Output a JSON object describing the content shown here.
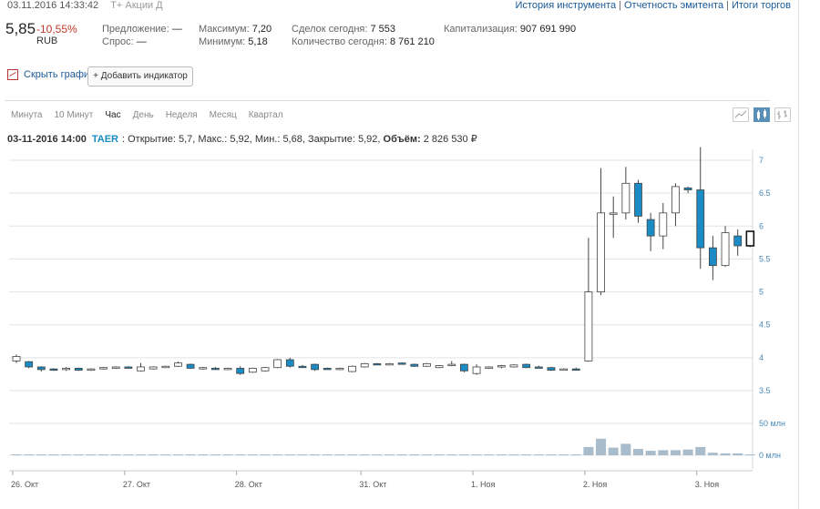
{
  "header": {
    "datetime": "03.11.2016 14:33:42",
    "market": "Т+ Акции Д",
    "links": [
      "История инструмента",
      "Отчетность эмитента",
      "Итоги торгов"
    ],
    "price": "5,85",
    "change": "-10,55%",
    "currency": "RUB",
    "offer_label": "Предложение:",
    "offer_value": "—",
    "bid_label": "Спрос:",
    "bid_value": "—",
    "max_label": "Максимум:",
    "max_value": "7,20",
    "min_label": "Минимум:",
    "min_value": "5,18",
    "deals_label": "Сделок сегодня:",
    "deals_value": "7 553",
    "qty_label": "Количество сегодня:",
    "qty_value": "8 761 210",
    "cap_label": "Капитализация:",
    "cap_value": "907 691 990"
  },
  "controls": {
    "hide_chart": "Скрыть график",
    "add_indicator": "+ Добавить индикатор",
    "tabs": [
      "Минута",
      "10 Минут",
      "Час",
      "День",
      "Неделя",
      "Месяц",
      "Квартал"
    ],
    "active_tab": "Час"
  },
  "info": {
    "date": "03-11-2016 14:00",
    "ticker": "TAER",
    "rest": ": Открытие: 5,7, Макс.: 5,92, Мин.: 5,68, Закрытие: 5,92,",
    "volume_label": "Объём:",
    "volume_value": "2 826 530 ₽"
  },
  "colors": {
    "up": "#ffffff",
    "down": "#1a8bc4",
    "wick": "#444444",
    "volume": "#a8bccb",
    "grid": "#e3e3e3",
    "axis_text": "#4a8ab8"
  },
  "chart_data": {
    "type": "candlestick",
    "y_ticks": [
      3.5,
      4,
      4.5,
      5,
      5.5,
      6,
      6.5,
      7
    ],
    "y_tick_labels": [
      "3.5",
      "4",
      "4.5",
      "5",
      "5.5",
      "6",
      "6.5",
      "7"
    ],
    "ylim": [
      3.3,
      7.3
    ],
    "volume_ticks": [
      "50 млн",
      "0 млн"
    ],
    "volume_max": 70,
    "x_labels": [
      "26. Окт",
      "27. Окт",
      "28. Окт",
      "31. Окт",
      "1. Ноя",
      "2. Ноя",
      "3. Ноя"
    ],
    "x_label_index": [
      0,
      9,
      18,
      28,
      37,
      46,
      55
    ],
    "candles": [
      {
        "o": 3.95,
        "h": 4.05,
        "l": 3.92,
        "c": 4.02,
        "v": 0.5
      },
      {
        "o": 3.94,
        "h": 3.95,
        "l": 3.84,
        "c": 3.86,
        "v": 0.5
      },
      {
        "o": 3.86,
        "h": 3.87,
        "l": 3.79,
        "c": 3.82,
        "v": 0.5
      },
      {
        "o": 3.83,
        "h": 3.84,
        "l": 3.8,
        "c": 3.82,
        "v": 0.3
      },
      {
        "o": 3.82,
        "h": 3.86,
        "l": 3.8,
        "c": 3.84,
        "v": 0.3
      },
      {
        "o": 3.84,
        "h": 3.85,
        "l": 3.8,
        "c": 3.81,
        "v": 0.3
      },
      {
        "o": 3.82,
        "h": 3.84,
        "l": 3.8,
        "c": 3.83,
        "v": 0.3
      },
      {
        "o": 3.84,
        "h": 3.86,
        "l": 3.82,
        "c": 3.85,
        "v": 0.3
      },
      {
        "o": 3.85,
        "h": 3.87,
        "l": 3.83,
        "c": 3.86,
        "v": 0.3
      },
      {
        "o": 3.86,
        "h": 3.87,
        "l": 3.84,
        "c": 3.85,
        "v": 0.3
      },
      {
        "o": 3.8,
        "h": 3.92,
        "l": 3.79,
        "c": 3.86,
        "v": 0.3
      },
      {
        "o": 3.83,
        "h": 3.87,
        "l": 3.82,
        "c": 3.86,
        "v": 0.3
      },
      {
        "o": 3.86,
        "h": 3.88,
        "l": 3.85,
        "c": 3.87,
        "v": 0.3
      },
      {
        "o": 3.87,
        "h": 3.94,
        "l": 3.86,
        "c": 3.92,
        "v": 0.5
      },
      {
        "o": 3.9,
        "h": 3.91,
        "l": 3.83,
        "c": 3.84,
        "v": 0.5
      },
      {
        "o": 3.84,
        "h": 3.86,
        "l": 3.82,
        "c": 3.85,
        "v": 0.3
      },
      {
        "o": 3.84,
        "h": 3.86,
        "l": 3.82,
        "c": 3.83,
        "v": 0.3
      },
      {
        "o": 3.83,
        "h": 3.85,
        "l": 3.82,
        "c": 3.84,
        "v": 0.3
      },
      {
        "o": 3.84,
        "h": 3.87,
        "l": 3.74,
        "c": 3.76,
        "v": 0.3
      },
      {
        "o": 3.78,
        "h": 3.85,
        "l": 3.77,
        "c": 3.84,
        "v": 0.3
      },
      {
        "o": 3.8,
        "h": 3.86,
        "l": 3.79,
        "c": 3.85,
        "v": 0.3
      },
      {
        "o": 3.85,
        "h": 3.98,
        "l": 3.84,
        "c": 3.97,
        "v": 0.5
      },
      {
        "o": 3.97,
        "h": 4.0,
        "l": 3.85,
        "c": 3.87,
        "v": 0.5
      },
      {
        "o": 3.87,
        "h": 3.89,
        "l": 3.85,
        "c": 3.86,
        "v": 0.3
      },
      {
        "o": 3.9,
        "h": 3.91,
        "l": 3.8,
        "c": 3.82,
        "v": 0.3
      },
      {
        "o": 3.84,
        "h": 3.85,
        "l": 3.82,
        "c": 3.83,
        "v": 0.3
      },
      {
        "o": 3.83,
        "h": 3.85,
        "l": 3.81,
        "c": 3.84,
        "v": 0.3
      },
      {
        "o": 3.79,
        "h": 3.88,
        "l": 3.78,
        "c": 3.87,
        "v": 0.3
      },
      {
        "o": 3.86,
        "h": 3.92,
        "l": 3.85,
        "c": 3.91,
        "v": 0.3
      },
      {
        "o": 3.91,
        "h": 3.92,
        "l": 3.89,
        "c": 3.9,
        "v": 0.3
      },
      {
        "o": 3.9,
        "h": 3.92,
        "l": 3.89,
        "c": 3.91,
        "v": 0.3
      },
      {
        "o": 3.92,
        "h": 3.93,
        "l": 3.9,
        "c": 3.91,
        "v": 0.3
      },
      {
        "o": 3.9,
        "h": 3.91,
        "l": 3.86,
        "c": 3.87,
        "v": 0.3
      },
      {
        "o": 3.87,
        "h": 3.92,
        "l": 3.86,
        "c": 3.91,
        "v": 0.3
      },
      {
        "o": 3.85,
        "h": 3.89,
        "l": 3.84,
        "c": 3.88,
        "v": 0.3
      },
      {
        "o": 3.88,
        "h": 3.95,
        "l": 3.87,
        "c": 3.9,
        "v": 0.3
      },
      {
        "o": 3.9,
        "h": 3.91,
        "l": 3.78,
        "c": 3.8,
        "v": 0.5
      },
      {
        "o": 3.76,
        "h": 3.9,
        "l": 3.74,
        "c": 3.86,
        "v": 0.3
      },
      {
        "o": 3.85,
        "h": 3.87,
        "l": 3.83,
        "c": 3.86,
        "v": 0.3
      },
      {
        "o": 3.86,
        "h": 3.89,
        "l": 3.84,
        "c": 3.88,
        "v": 0.3
      },
      {
        "o": 3.86,
        "h": 3.9,
        "l": 3.85,
        "c": 3.89,
        "v": 0.3
      },
      {
        "o": 3.9,
        "h": 3.91,
        "l": 3.84,
        "c": 3.85,
        "v": 0.3
      },
      {
        "o": 3.86,
        "h": 3.88,
        "l": 3.84,
        "c": 3.85,
        "v": 0.3
      },
      {
        "o": 3.85,
        "h": 3.86,
        "l": 3.8,
        "c": 3.81,
        "v": 0.3
      },
      {
        "o": 3.82,
        "h": 3.84,
        "l": 3.81,
        "c": 3.83,
        "v": 0.3
      },
      {
        "o": 3.83,
        "h": 3.85,
        "l": 3.81,
        "c": 3.82,
        "v": 0.3
      },
      {
        "o": 3.95,
        "h": 5.82,
        "l": 3.94,
        "c": 5.0,
        "v": 13
      },
      {
        "o": 5.0,
        "h": 6.88,
        "l": 4.95,
        "c": 6.2,
        "v": 26
      },
      {
        "o": 6.18,
        "h": 6.45,
        "l": 5.82,
        "c": 6.2,
        "v": 12
      },
      {
        "o": 6.2,
        "h": 6.9,
        "l": 6.1,
        "c": 6.65,
        "v": 18
      },
      {
        "o": 6.65,
        "h": 6.7,
        "l": 6.05,
        "c": 6.15,
        "v": 10
      },
      {
        "o": 6.1,
        "h": 6.2,
        "l": 5.62,
        "c": 5.85,
        "v": 7
      },
      {
        "o": 5.85,
        "h": 6.35,
        "l": 5.65,
        "c": 6.2,
        "v": 8
      },
      {
        "o": 6.2,
        "h": 6.65,
        "l": 6.0,
        "c": 6.6,
        "v": 8
      },
      {
        "o": 6.58,
        "h": 6.6,
        "l": 6.5,
        "c": 6.55,
        "v": 9
      },
      {
        "o": 6.55,
        "h": 7.2,
        "l": 5.35,
        "c": 5.67,
        "v": 13
      },
      {
        "o": 5.67,
        "h": 5.85,
        "l": 5.18,
        "c": 5.4,
        "v": 4
      },
      {
        "o": 5.4,
        "h": 6.0,
        "l": 5.38,
        "c": 5.9,
        "v": 3
      },
      {
        "o": 5.85,
        "h": 5.95,
        "l": 5.55,
        "c": 5.7,
        "v": 3
      },
      {
        "o": 5.7,
        "h": 5.92,
        "l": 5.68,
        "c": 5.92,
        "v": 1
      }
    ]
  }
}
